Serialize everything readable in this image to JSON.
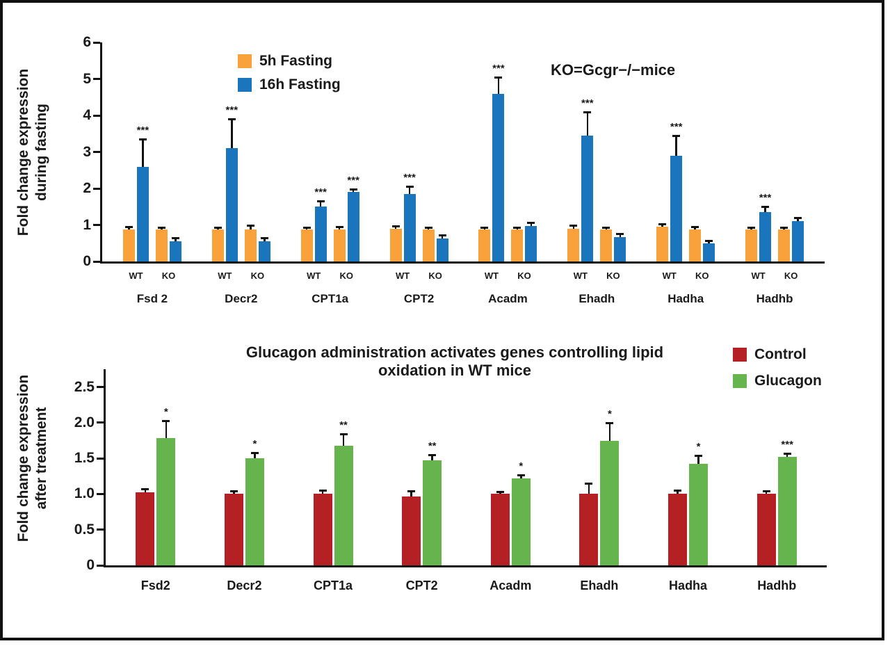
{
  "chart_data": [
    {
      "type": "bar",
      "title": "",
      "ylabel": "Fold change expression\nduring fasting",
      "xlabel": "",
      "ylim": [
        0,
        6
      ],
      "ymax": 6,
      "yticks": [
        "0",
        "1",
        "2",
        "3",
        "4",
        "5",
        "6"
      ],
      "annotation": "KO=Gcgr−/−mice",
      "legend_position": "top-left-inside",
      "grid": false,
      "legend": [
        {
          "label": "5h Fasting",
          "color": "#F9A23B"
        },
        {
          "label": "16h Fasting",
          "color": "#1B75BC"
        }
      ],
      "groups": [
        {
          "gene": "Fsd 2",
          "pairs": [
            {
              "label": "WT",
              "bars": [
                {
                  "series": "5h Fasting",
                  "value": 0.88,
                  "err": 0.07
                },
                {
                  "series": "16h Fasting",
                  "value": 2.6,
                  "err": 0.75,
                  "sig": "***"
                }
              ]
            },
            {
              "label": "KO",
              "bars": [
                {
                  "series": "5h Fasting",
                  "value": 0.88,
                  "err": 0.05
                },
                {
                  "series": "16h Fasting",
                  "value": 0.55,
                  "err": 0.1
                }
              ]
            }
          ]
        },
        {
          "gene": "Decr2",
          "pairs": [
            {
              "label": "WT",
              "bars": [
                {
                  "series": "5h Fasting",
                  "value": 0.88,
                  "err": 0.05
                },
                {
                  "series": "16h Fasting",
                  "value": 3.1,
                  "err": 0.8,
                  "sig": "***"
                }
              ]
            },
            {
              "label": "KO",
              "bars": [
                {
                  "series": "5h Fasting",
                  "value": 0.88,
                  "err": 0.12
                },
                {
                  "series": "16h Fasting",
                  "value": 0.55,
                  "err": 0.1
                }
              ]
            }
          ]
        },
        {
          "gene": "CPT1a",
          "pairs": [
            {
              "label": "WT",
              "bars": [
                {
                  "series": "5h Fasting",
                  "value": 0.88,
                  "err": 0.05
                },
                {
                  "series": "16h Fasting",
                  "value": 1.5,
                  "err": 0.15,
                  "sig": "***"
                }
              ]
            },
            {
              "label": "KO",
              "bars": [
                {
                  "series": "5h Fasting",
                  "value": 0.88,
                  "err": 0.07
                },
                {
                  "series": "16h Fasting",
                  "value": 1.9,
                  "err": 0.08,
                  "sig": "***"
                }
              ]
            }
          ]
        },
        {
          "gene": "CPT2",
          "pairs": [
            {
              "label": "WT",
              "bars": [
                {
                  "series": "5h Fasting",
                  "value": 0.9,
                  "err": 0.08
                },
                {
                  "series": "16h Fasting",
                  "value": 1.85,
                  "err": 0.2,
                  "sig": "***"
                }
              ]
            },
            {
              "label": "KO",
              "bars": [
                {
                  "series": "5h Fasting",
                  "value": 0.88,
                  "err": 0.05
                },
                {
                  "series": "16h Fasting",
                  "value": 0.62,
                  "err": 0.1
                }
              ]
            }
          ]
        },
        {
          "gene": "Acadm",
          "pairs": [
            {
              "label": "WT",
              "bars": [
                {
                  "series": "5h Fasting",
                  "value": 0.88,
                  "err": 0.05
                },
                {
                  "series": "16h Fasting",
                  "value": 4.6,
                  "err": 0.45,
                  "sig": "***"
                }
              ]
            },
            {
              "label": "KO",
              "bars": [
                {
                  "series": "5h Fasting",
                  "value": 0.88,
                  "err": 0.05
                },
                {
                  "series": "16h Fasting",
                  "value": 0.97,
                  "err": 0.1
                }
              ]
            }
          ]
        },
        {
          "gene": "Ehadh",
          "pairs": [
            {
              "label": "WT",
              "bars": [
                {
                  "series": "5h Fasting",
                  "value": 0.9,
                  "err": 0.1
                },
                {
                  "series": "16h Fasting",
                  "value": 3.45,
                  "err": 0.65,
                  "sig": "***"
                }
              ]
            },
            {
              "label": "KO",
              "bars": [
                {
                  "series": "5h Fasting",
                  "value": 0.88,
                  "err": 0.05
                },
                {
                  "series": "16h Fasting",
                  "value": 0.67,
                  "err": 0.1
                }
              ]
            }
          ]
        },
        {
          "gene": "Hadha",
          "pairs": [
            {
              "label": "WT",
              "bars": [
                {
                  "series": "5h Fasting",
                  "value": 0.95,
                  "err": 0.08
                },
                {
                  "series": "16h Fasting",
                  "value": 2.9,
                  "err": 0.55,
                  "sig": "***"
                }
              ]
            },
            {
              "label": "KO",
              "bars": [
                {
                  "series": "5h Fasting",
                  "value": 0.88,
                  "err": 0.07
                },
                {
                  "series": "16h Fasting",
                  "value": 0.5,
                  "err": 0.08
                }
              ]
            }
          ]
        },
        {
          "gene": "Hadhb",
          "pairs": [
            {
              "label": "WT",
              "bars": [
                {
                  "series": "5h Fasting",
                  "value": 0.88,
                  "err": 0.05
                },
                {
                  "series": "16h Fasting",
                  "value": 1.35,
                  "err": 0.15,
                  "sig": "***"
                }
              ]
            },
            {
              "label": "KO",
              "bars": [
                {
                  "series": "5h Fasting",
                  "value": 0.88,
                  "err": 0.05
                },
                {
                  "series": "16h Fasting",
                  "value": 1.1,
                  "err": 0.1
                }
              ]
            }
          ]
        }
      ]
    },
    {
      "type": "bar",
      "title": "Glucagon administration activates genes controlling lipid\noxidation in WT mice",
      "ylabel": "Fold change expression\nafter treatment",
      "xlabel": "",
      "ylim": [
        0,
        2.5
      ],
      "ymax": 2.75,
      "yticks": [
        "0",
        "0.5",
        "1.0",
        "1.5",
        "2.0",
        "2.5"
      ],
      "annotation": "",
      "legend_position": "top-right-inside",
      "grid": false,
      "legend": [
        {
          "label": "Control",
          "color": "#B52025"
        },
        {
          "label": "Glucagon",
          "color": "#66B44D"
        }
      ],
      "groups": [
        {
          "gene": "Fsd2",
          "pairs": [
            {
              "label": "",
              "bars": [
                {
                  "series": "Control",
                  "value": 1.02,
                  "err": 0.05
                },
                {
                  "series": "Glucagon",
                  "value": 1.78,
                  "err": 0.25,
                  "sig": "*"
                }
              ]
            }
          ]
        },
        {
          "gene": "Decr2",
          "pairs": [
            {
              "label": "",
              "bars": [
                {
                  "series": "Control",
                  "value": 1.0,
                  "err": 0.04
                },
                {
                  "series": "Glucagon",
                  "value": 1.5,
                  "err": 0.08,
                  "sig": "*"
                }
              ]
            }
          ]
        },
        {
          "gene": "CPT1a",
          "pairs": [
            {
              "label": "",
              "bars": [
                {
                  "series": "Control",
                  "value": 1.0,
                  "err": 0.05
                },
                {
                  "series": "Glucagon",
                  "value": 1.68,
                  "err": 0.16,
                  "sig": "**"
                }
              ]
            }
          ]
        },
        {
          "gene": "CPT2",
          "pairs": [
            {
              "label": "",
              "bars": [
                {
                  "series": "Control",
                  "value": 0.97,
                  "err": 0.07
                },
                {
                  "series": "Glucagon",
                  "value": 1.47,
                  "err": 0.08,
                  "sig": "**"
                }
              ]
            }
          ]
        },
        {
          "gene": "Acadm",
          "pairs": [
            {
              "label": "",
              "bars": [
                {
                  "series": "Control",
                  "value": 1.0,
                  "err": 0.03
                },
                {
                  "series": "Glucagon",
                  "value": 1.22,
                  "err": 0.05,
                  "sig": "*"
                }
              ]
            }
          ]
        },
        {
          "gene": "Ehadh",
          "pairs": [
            {
              "label": "",
              "bars": [
                {
                  "series": "Control",
                  "value": 1.0,
                  "err": 0.15
                },
                {
                  "series": "Glucagon",
                  "value": 1.75,
                  "err": 0.25,
                  "sig": "*"
                }
              ]
            }
          ]
        },
        {
          "gene": "Hadha",
          "pairs": [
            {
              "label": "",
              "bars": [
                {
                  "series": "Control",
                  "value": 1.0,
                  "err": 0.05
                },
                {
                  "series": "Glucagon",
                  "value": 1.42,
                  "err": 0.12,
                  "sig": "*"
                }
              ]
            }
          ]
        },
        {
          "gene": "Hadhb",
          "pairs": [
            {
              "label": "",
              "bars": [
                {
                  "series": "Control",
                  "value": 1.0,
                  "err": 0.04
                },
                {
                  "series": "Glucagon",
                  "value": 1.52,
                  "err": 0.05,
                  "sig": "***"
                }
              ]
            }
          ]
        }
      ]
    }
  ]
}
